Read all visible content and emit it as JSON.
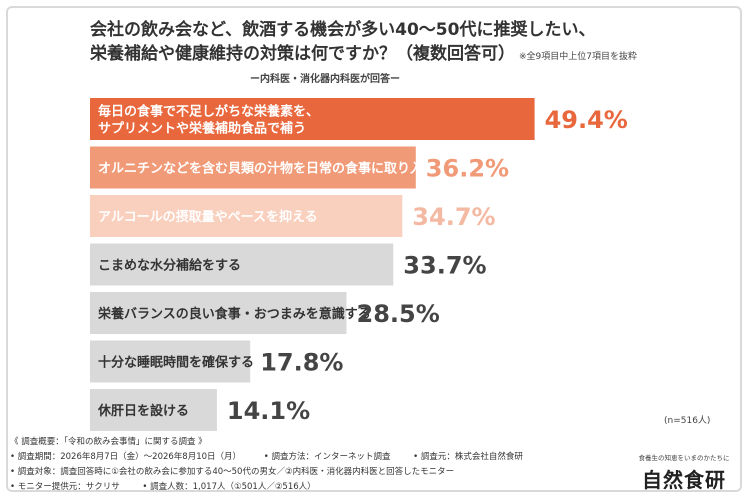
{
  "title": {
    "line1": "会社の飲み会など、飲酒する機会が多い40～50代に推奨したい、",
    "line2": "栄養補給や健康維持の対策は何ですか？（複数回答可）",
    "note": "※全9項目中上位7項目を抜粋"
  },
  "subtitle": "ー内科医・消化器内科医が回答ー",
  "sample_size": "(n=516人)",
  "chart_data": {
    "type": "bar",
    "orientation": "horizontal",
    "categories": [
      [
        "毎日の食事で不足しがちな栄養素を、",
        "サプリメントや栄養補助食品で補う"
      ],
      [
        "オルニチンなどを含む貝類の汁物を日常の食事に取り入れる"
      ],
      [
        "アルコールの摂取量やペースを抑える"
      ],
      [
        "こまめな水分補給をする"
      ],
      [
        "栄養バランスの良い食事・おつまみを意識する"
      ],
      [
        "十分な睡眠時間を確保する"
      ],
      [
        "休肝日を設ける"
      ]
    ],
    "values": [
      49.4,
      36.2,
      34.7,
      33.7,
      28.5,
      17.8,
      14.1
    ],
    "value_labels": [
      "49.4%",
      "36.2%",
      "34.7%",
      "33.7%",
      "28.5%",
      "17.8%",
      "14.1%"
    ],
    "bar_colors": [
      "#e8673c",
      "#f19a78",
      "#f9cfbe",
      "#d9d9d9",
      "#d9d9d9",
      "#d9d9d9",
      "#d9d9d9"
    ],
    "label_colors": [
      "#ffffff",
      "#ffffff",
      "#ffffff",
      "#333333",
      "#333333",
      "#333333",
      "#333333"
    ],
    "value_colors": [
      "#e8673c",
      "#f19a78",
      "#f4b9a2",
      "#444444",
      "#444444",
      "#444444",
      "#444444"
    ],
    "xlim": [
      0,
      50
    ],
    "grid": false,
    "legend": "none"
  },
  "survey": {
    "header": "《 調査概要：「令和の飲み会事情」に関する調査 》",
    "period": "• 調査期間：2026年8月7日（金）～2026年8月10日（月）",
    "method": "• 調査方法：インターネット調査",
    "organizer": "• 調査元：株式会社自然食研",
    "target": "• 調査対象：調査回答時に①会社の飲み会に参加する40～50代の男女／②内科医・消化器内科医と回答したモニター",
    "provider": "• モニター提供元：サクリサ",
    "respondents": "• 調査人数：1,017人（①501人／②516人）"
  },
  "brand": {
    "tagline": "食養生の知恵をいまのかたちに",
    "name": "自然食研"
  }
}
